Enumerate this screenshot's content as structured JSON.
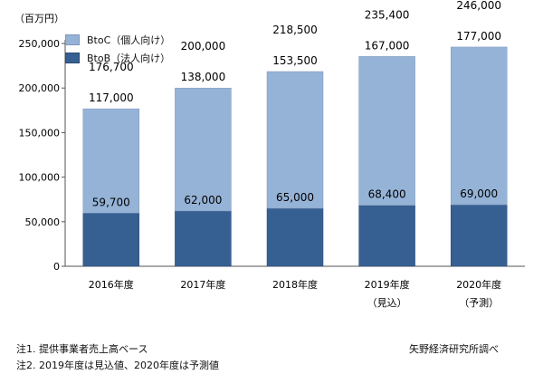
{
  "chart_data": {
    "type": "bar",
    "stacked": true,
    "unit_label": "（百万円）",
    "categories": [
      "2016年度",
      "2017年度",
      "2018年度",
      "2019年度",
      "2020年度"
    ],
    "category_sublabels": [
      "",
      "",
      "",
      "（見込）",
      "（予測）"
    ],
    "series": [
      {
        "name": "BtoB（法人向け）",
        "color": "#376092",
        "values": [
          59700,
          62000,
          65000,
          68400,
          69000
        ]
      },
      {
        "name": "BtoC（個人向け）",
        "color": "#95b3d7",
        "values": [
          117000,
          138000,
          153500,
          167000,
          177000
        ]
      }
    ],
    "totals": [
      176700,
      200000,
      218500,
      235400,
      246000
    ],
    "yticks": [
      "0",
      "50,000",
      "100,000",
      "150,000",
      "200,000",
      "250,000"
    ],
    "ylim": [
      0,
      250000
    ],
    "value_labels": {
      "btob": [
        "59,700",
        "62,000",
        "65,000",
        "68,400",
        "69,000"
      ],
      "btoc": [
        "117,000",
        "138,000",
        "153,500",
        "167,000",
        "177,000"
      ],
      "total": [
        "176,700",
        "200,000",
        "218,500",
        "235,400",
        "246,000"
      ]
    },
    "legend_position": "top-left"
  },
  "notes": [
    "注1. 提供事業者売上高ベース",
    "注2. 2019年度は見込値、2020年度は予測値"
  ],
  "source": "矢野経済研究所調べ"
}
